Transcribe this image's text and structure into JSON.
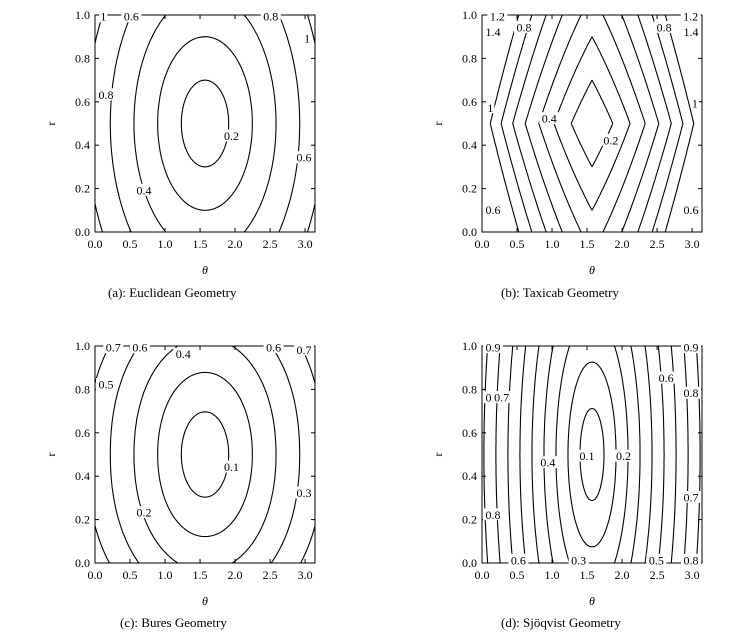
{
  "chart_data": [
    {
      "type": "contour",
      "caption": "(a): Euclidean Geometry",
      "xlabel": "θ",
      "ylabel": "r",
      "xlim": [
        0,
        3.14159
      ],
      "ylim": [
        0,
        1
      ],
      "xticks": [
        "0.0",
        "0.5",
        "1.0",
        "1.5",
        "2.0",
        "2.5",
        "3.0"
      ],
      "yticks": [
        "0.0",
        "0.2",
        "0.4",
        "0.6",
        "0.8",
        "1.0"
      ],
      "contour_levels": [
        0.2,
        0.4,
        0.6,
        0.8,
        1
      ],
      "contour_labels": [
        {
          "text": "1",
          "x": 0.12,
          "y": 0.99
        },
        {
          "text": "0.6",
          "x": 0.52,
          "y": 0.99
        },
        {
          "text": "0.8",
          "x": 2.51,
          "y": 0.99
        },
        {
          "text": "1",
          "x": 3.03,
          "y": 0.89
        },
        {
          "text": "0.8",
          "x": 0.02,
          "y": 0.63
        },
        {
          "text": "0.2",
          "x": 1.95,
          "y": 0.44
        },
        {
          "text": "0.6",
          "x": 3.09,
          "y": 0.34
        },
        {
          "text": "0.4",
          "x": 0.7,
          "y": 0.19
        }
      ]
    },
    {
      "type": "contour",
      "caption": "(b): Taxicab Geometry",
      "xlabel": "θ",
      "ylabel": "r",
      "xlim": [
        0,
        3.14159
      ],
      "ylim": [
        0,
        1
      ],
      "xticks": [
        "0.0",
        "0.5",
        "1.0",
        "1.5",
        "2.0",
        "2.5",
        "3.0"
      ],
      "yticks": [
        "0.0",
        "0.2",
        "0.4",
        "0.6",
        "0.8",
        "1.0"
      ],
      "contour_levels": [
        0.2,
        0.4,
        0.6,
        0.8,
        1,
        1.2,
        1.4
      ],
      "contour_labels": [
        {
          "text": "1.2",
          "x": 0.22,
          "y": 0.99
        },
        {
          "text": "1.4",
          "x": 0.02,
          "y": 0.92
        },
        {
          "text": "0.8",
          "x": 0.6,
          "y": 0.94
        },
        {
          "text": "0.8",
          "x": 2.6,
          "y": 0.94
        },
        {
          "text": "1.2",
          "x": 2.98,
          "y": 0.99
        },
        {
          "text": "1.4",
          "x": 3.11,
          "y": 0.92
        },
        {
          "text": "1",
          "x": 0.12,
          "y": 0.57
        },
        {
          "text": "1",
          "x": 3.04,
          "y": 0.59
        },
        {
          "text": "0.4",
          "x": 0.96,
          "y": 0.52
        },
        {
          "text": "0.2",
          "x": 1.84,
          "y": 0.42
        },
        {
          "text": "0.6",
          "x": 0.02,
          "y": 0.1
        },
        {
          "text": "0.6",
          "x": 3.09,
          "y": 0.1
        }
      ]
    },
    {
      "type": "contour",
      "caption": "(c): Bures Geometry",
      "xlabel": "θ",
      "ylabel": "r",
      "xlim": [
        0,
        3.14159
      ],
      "ylim": [
        0,
        1
      ],
      "xticks": [
        "0.0",
        "0.5",
        "1.0",
        "1.5",
        "2.0",
        "2.5",
        "3.0"
      ],
      "yticks": [
        "0.0",
        "0.2",
        "0.4",
        "0.6",
        "0.8",
        "1.0"
      ],
      "contour_levels": [
        0.1,
        0.2,
        0.3,
        0.4,
        0.5,
        0.6,
        0.7
      ],
      "contour_labels": [
        {
          "text": "0.7",
          "x": 0.26,
          "y": 0.99
        },
        {
          "text": "0.6",
          "x": 0.64,
          "y": 0.99
        },
        {
          "text": "0.4",
          "x": 1.26,
          "y": 0.96
        },
        {
          "text": "0.6",
          "x": 2.55,
          "y": 0.99
        },
        {
          "text": "0.7",
          "x": 3.08,
          "y": 0.98
        },
        {
          "text": "0.5",
          "x": 0.03,
          "y": 0.82
        },
        {
          "text": "0.1",
          "x": 1.95,
          "y": 0.44
        },
        {
          "text": "0.3",
          "x": 3.09,
          "y": 0.32
        },
        {
          "text": "0.2",
          "x": 0.7,
          "y": 0.23
        }
      ]
    },
    {
      "type": "contour",
      "caption": "(d): Sjöqvist Geometry",
      "xlabel": "θ",
      "ylabel": "r",
      "xlim": [
        0,
        3.14159
      ],
      "ylim": [
        0,
        1
      ],
      "xticks": [
        "0.0",
        "0.5",
        "1.0",
        "1.5",
        "2.0",
        "2.5",
        "3.0"
      ],
      "yticks": [
        "0.0",
        "0.2",
        "0.4",
        "0.6",
        "0.8",
        "1.0"
      ],
      "contour_levels": [
        0.1,
        0.2,
        0.3,
        0.4,
        0.5,
        0.6,
        0.7,
        0.8,
        0.9
      ],
      "contour_labels": [
        {
          "text": "0.9",
          "x": 0.02,
          "y": 0.99
        },
        {
          "text": "0.9",
          "x": 3.1,
          "y": 0.99
        },
        {
          "text": "0.6",
          "x": 2.63,
          "y": 0.85
        },
        {
          "text": "0.8",
          "x": 0.02,
          "y": 0.76
        },
        {
          "text": "0.7",
          "x": 0.28,
          "y": 0.76
        },
        {
          "text": "0.8",
          "x": 3.12,
          "y": 0.78
        },
        {
          "text": "0.4",
          "x": 0.94,
          "y": 0.46
        },
        {
          "text": "0.1",
          "x": 1.5,
          "y": 0.49
        },
        {
          "text": "0.2",
          "x": 2.02,
          "y": 0.49
        },
        {
          "text": "0.7",
          "x": 3.04,
          "y": 0.3
        },
        {
          "text": "0.8",
          "x": 0.03,
          "y": 0.22
        },
        {
          "text": "0.6",
          "x": 0.52,
          "y": 0.01
        },
        {
          "text": "0.3",
          "x": 1.38,
          "y": 0.01
        },
        {
          "text": "0.5",
          "x": 2.49,
          "y": 0.01
        },
        {
          "text": "0.8",
          "x": 3.09,
          "y": 0.01
        }
      ]
    }
  ]
}
